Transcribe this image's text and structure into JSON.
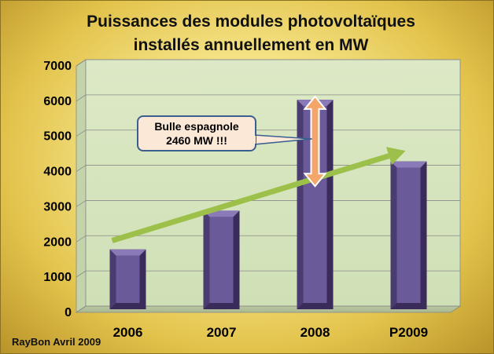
{
  "chart_data": {
    "type": "bar",
    "title_lines": [
      "Puissances des modules photovoltaïques",
      "installés annuellement en MW"
    ],
    "categories": [
      "2006",
      "2007",
      "2008",
      "P2009"
    ],
    "values": [
      1700,
      2800,
      5950,
      4200
    ],
    "ylim": [
      0,
      7000
    ],
    "yticks": [
      0,
      1000,
      2000,
      3000,
      4000,
      5000,
      6000,
      7000
    ],
    "xlabel": "",
    "ylabel": "",
    "grid": true,
    "legend": "none",
    "annotation": {
      "lines": [
        "Bulle espagnole",
        "2460 MW !!!"
      ],
      "bubble_range": [
        3540,
        6000
      ]
    },
    "trend_line": {
      "from": {
        "category": "2006",
        "value": 1950
      },
      "to": {
        "category": "P2009",
        "value": 4500
      }
    },
    "credit": "RayBon Avril 2009"
  },
  "colors": {
    "bar_face": "#6a5a9a",
    "bar_dark": "#3a2b5a",
    "bar_light": "#8a7ab8",
    "plot_bg": "#d7e6c0",
    "gridline": "#8a8a8a",
    "trend": "#9cc04a",
    "callout_fill": "#fce8d6",
    "callout_border": "#3a5f8e",
    "arrow_fill": "#f4a66a",
    "arrow_stroke": "#ffffff"
  }
}
